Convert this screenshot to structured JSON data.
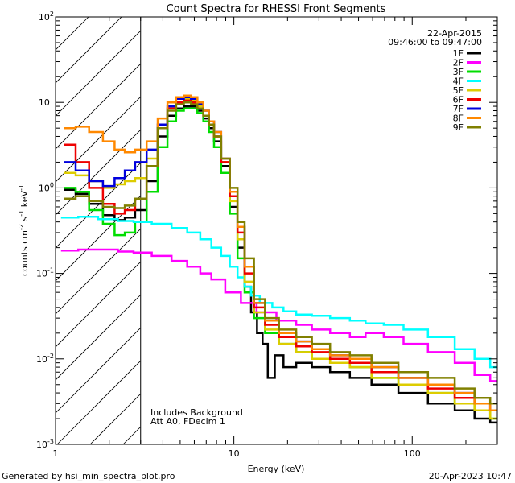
{
  "chart_data": {
    "type": "line",
    "title": "Count Spectra for RHESSI Front Segments",
    "xlabel": "Energy (keV)",
    "ylabel": {
      "main": "counts cm",
      "exp1": "-2",
      "mid": " s",
      "exp2": "-1",
      "tail": " keV",
      "exp3": "-1"
    },
    "x_scale": "log",
    "y_scale": "log",
    "xlim": [
      1,
      300
    ],
    "ylim": [
      0.001,
      100
    ],
    "x_ticks": [
      {
        "value": 1,
        "label": "1"
      },
      {
        "value": 10,
        "label": "10"
      },
      {
        "value": 100,
        "label": "100"
      }
    ],
    "y_ticks": [
      {
        "value": 0.001,
        "base": "10",
        "exp": "-3"
      },
      {
        "value": 0.01,
        "base": "10",
        "exp": "-2"
      },
      {
        "value": 0.1,
        "base": "10",
        "exp": "-1"
      },
      {
        "value": 1,
        "base": "10",
        "exp": "0"
      },
      {
        "value": 10,
        "base": "10",
        "exp": "1"
      },
      {
        "value": 100,
        "base": "10",
        "exp": "2"
      }
    ],
    "shaded_region": {
      "x_from": 1,
      "x_to": 3
    },
    "date": "22-Apr-2015",
    "time_range": "09:46:00 to 09:47:00",
    "annotations": [
      "Includes Background",
      "Att A0, FDecim 1"
    ],
    "series": [
      {
        "name": "1F",
        "color": "#000000",
        "points": [
          [
            1.2,
            0.95
          ],
          [
            1.4,
            0.85
          ],
          [
            1.7,
            0.65
          ],
          [
            2.0,
            0.48
          ],
          [
            2.3,
            0.42
          ],
          [
            2.6,
            0.45
          ],
          [
            3.0,
            0.55
          ],
          [
            3.5,
            1.2
          ],
          [
            4.0,
            4.0
          ],
          [
            4.5,
            7.0
          ],
          [
            5.0,
            8.5
          ],
          [
            5.5,
            9.0
          ],
          [
            6.0,
            9.0
          ],
          [
            6.5,
            8.0
          ],
          [
            7.0,
            6.5
          ],
          [
            7.5,
            5.0
          ],
          [
            8.0,
            3.5
          ],
          [
            9.0,
            1.8
          ],
          [
            10.0,
            0.6
          ],
          [
            11.0,
            0.2
          ],
          [
            12.0,
            0.07
          ],
          [
            13.0,
            0.035
          ],
          [
            14.0,
            0.02
          ],
          [
            15.0,
            0.015
          ],
          [
            16.0,
            0.006
          ],
          [
            18.0,
            0.011
          ],
          [
            20.0,
            0.008
          ],
          [
            25.0,
            0.009
          ],
          [
            30.0,
            0.008
          ],
          [
            40.0,
            0.007
          ],
          [
            50.0,
            0.006
          ],
          [
            70.0,
            0.005
          ],
          [
            100.0,
            0.004
          ],
          [
            150.0,
            0.003
          ],
          [
            200.0,
            0.0025
          ],
          [
            250.0,
            0.002
          ],
          [
            300.0,
            0.0018
          ]
        ]
      },
      {
        "name": "2F",
        "color": "#ff00ff",
        "points": [
          [
            1.2,
            0.185
          ],
          [
            1.5,
            0.19
          ],
          [
            2.0,
            0.19
          ],
          [
            2.5,
            0.18
          ],
          [
            3.0,
            0.175
          ],
          [
            4.0,
            0.16
          ],
          [
            5.0,
            0.14
          ],
          [
            6.0,
            0.12
          ],
          [
            7.0,
            0.1
          ],
          [
            8.0,
            0.085
          ],
          [
            10.0,
            0.06
          ],
          [
            12.0,
            0.045
          ],
          [
            15.0,
            0.035
          ],
          [
            20.0,
            0.028
          ],
          [
            25.0,
            0.025
          ],
          [
            30.0,
            0.022
          ],
          [
            40.0,
            0.02
          ],
          [
            50.0,
            0.018
          ],
          [
            60.0,
            0.02
          ],
          [
            80.0,
            0.018
          ],
          [
            100.0,
            0.015
          ],
          [
            150.0,
            0.012
          ],
          [
            200.0,
            0.009
          ],
          [
            250.0,
            0.0065
          ],
          [
            300.0,
            0.0055
          ]
        ]
      },
      {
        "name": "3F",
        "color": "#00dd00",
        "points": [
          [
            1.2,
            1.0
          ],
          [
            1.4,
            0.9
          ],
          [
            1.7,
            0.55
          ],
          [
            2.0,
            0.38
          ],
          [
            2.3,
            0.28
          ],
          [
            2.6,
            0.3
          ],
          [
            3.0,
            0.4
          ],
          [
            3.5,
            0.9
          ],
          [
            4.0,
            3.0
          ],
          [
            4.5,
            6.0
          ],
          [
            5.0,
            8.0
          ],
          [
            5.5,
            8.5
          ],
          [
            6.0,
            8.5
          ],
          [
            6.5,
            7.5
          ],
          [
            7.0,
            6.0
          ],
          [
            7.5,
            4.5
          ],
          [
            8.0,
            3.0
          ],
          [
            9.0,
            1.5
          ],
          [
            10.0,
            0.5
          ],
          [
            11.0,
            0.15
          ],
          [
            12.0,
            0.06
          ],
          [
            14.0,
            0.03
          ],
          [
            16.0,
            0.02
          ],
          [
            20.0,
            0.015
          ],
          [
            25.0,
            0.012
          ],
          [
            30.0,
            0.01
          ],
          [
            40.0,
            0.009
          ],
          [
            50.0,
            0.008
          ],
          [
            70.0,
            0.006
          ],
          [
            100.0,
            0.005
          ],
          [
            150.0,
            0.004
          ],
          [
            200.0,
            0.003
          ],
          [
            250.0,
            0.0025
          ],
          [
            300.0,
            0.002
          ]
        ]
      },
      {
        "name": "4F",
        "color": "#00ffff",
        "points": [
          [
            1.2,
            0.45
          ],
          [
            1.5,
            0.46
          ],
          [
            2.0,
            0.43
          ],
          [
            2.5,
            0.41
          ],
          [
            3.0,
            0.4
          ],
          [
            4.0,
            0.38
          ],
          [
            5.0,
            0.34
          ],
          [
            6.0,
            0.3
          ],
          [
            7.0,
            0.25
          ],
          [
            8.0,
            0.2
          ],
          [
            9.0,
            0.16
          ],
          [
            10.0,
            0.12
          ],
          [
            11.0,
            0.09
          ],
          [
            12.0,
            0.07
          ],
          [
            13.0,
            0.055
          ],
          [
            15.0,
            0.045
          ],
          [
            18.0,
            0.04
          ],
          [
            20.0,
            0.036
          ],
          [
            25.0,
            0.033
          ],
          [
            30.0,
            0.032
          ],
          [
            40.0,
            0.03
          ],
          [
            50.0,
            0.028
          ],
          [
            60.0,
            0.026
          ],
          [
            80.0,
            0.025
          ],
          [
            100.0,
            0.022
          ],
          [
            150.0,
            0.018
          ],
          [
            200.0,
            0.013
          ],
          [
            250.0,
            0.01
          ],
          [
            300.0,
            0.008
          ]
        ]
      },
      {
        "name": "5F",
        "color": "#ddcc00",
        "points": [
          [
            1.2,
            1.5
          ],
          [
            1.4,
            1.4
          ],
          [
            1.7,
            1.2
          ],
          [
            2.0,
            1.0
          ],
          [
            2.3,
            1.1
          ],
          [
            2.6,
            1.2
          ],
          [
            3.0,
            1.3
          ],
          [
            3.5,
            2.2
          ],
          [
            4.0,
            5.0
          ],
          [
            4.5,
            8.5
          ],
          [
            5.0,
            10.0
          ],
          [
            5.5,
            11.0
          ],
          [
            6.0,
            10.5
          ],
          [
            6.5,
            9.0
          ],
          [
            7.0,
            7.0
          ],
          [
            7.5,
            5.5
          ],
          [
            8.0,
            4.0
          ],
          [
            9.0,
            2.0
          ],
          [
            10.0,
            0.7
          ],
          [
            11.0,
            0.25
          ],
          [
            12.0,
            0.08
          ],
          [
            14.0,
            0.035
          ],
          [
            16.0,
            0.022
          ],
          [
            20.0,
            0.015
          ],
          [
            25.0,
            0.012
          ],
          [
            30.0,
            0.01
          ],
          [
            40.0,
            0.009
          ],
          [
            50.0,
            0.008
          ],
          [
            70.0,
            0.006
          ],
          [
            100.0,
            0.005
          ],
          [
            150.0,
            0.004
          ],
          [
            200.0,
            0.003
          ],
          [
            250.0,
            0.0025
          ],
          [
            300.0,
            0.002
          ]
        ]
      },
      {
        "name": "6F",
        "color": "#ee0000",
        "points": [
          [
            1.2,
            3.2
          ],
          [
            1.4,
            2.0
          ],
          [
            1.7,
            1.0
          ],
          [
            2.0,
            0.65
          ],
          [
            2.3,
            0.5
          ],
          [
            2.6,
            0.55
          ],
          [
            3.0,
            0.75
          ],
          [
            3.5,
            1.8
          ],
          [
            4.0,
            5.0
          ],
          [
            4.5,
            8.5
          ],
          [
            5.0,
            10.0
          ],
          [
            5.5,
            10.5
          ],
          [
            6.0,
            10.0
          ],
          [
            6.5,
            8.5
          ],
          [
            7.0,
            7.0
          ],
          [
            7.5,
            5.5
          ],
          [
            8.0,
            4.0
          ],
          [
            9.0,
            2.0
          ],
          [
            10.0,
            0.8
          ],
          [
            11.0,
            0.3
          ],
          [
            12.0,
            0.1
          ],
          [
            14.0,
            0.04
          ],
          [
            16.0,
            0.025
          ],
          [
            20.0,
            0.018
          ],
          [
            25.0,
            0.014
          ],
          [
            30.0,
            0.012
          ],
          [
            40.0,
            0.01
          ],
          [
            50.0,
            0.009
          ],
          [
            70.0,
            0.007
          ],
          [
            100.0,
            0.006
          ],
          [
            150.0,
            0.0045
          ],
          [
            200.0,
            0.0035
          ],
          [
            250.0,
            0.003
          ],
          [
            300.0,
            0.0025
          ]
        ]
      },
      {
        "name": "7F",
        "color": "#0000dd",
        "points": [
          [
            1.2,
            2.0
          ],
          [
            1.4,
            1.6
          ],
          [
            1.7,
            1.2
          ],
          [
            2.0,
            1.05
          ],
          [
            2.3,
            1.3
          ],
          [
            2.6,
            1.6
          ],
          [
            3.0,
            2.0
          ],
          [
            3.5,
            2.8
          ],
          [
            4.0,
            5.5
          ],
          [
            4.5,
            9.0
          ],
          [
            5.0,
            11.0
          ],
          [
            5.5,
            11.5
          ],
          [
            6.0,
            11.0
          ],
          [
            6.5,
            9.5
          ],
          [
            7.0,
            8.0
          ],
          [
            7.5,
            6.0
          ],
          [
            8.0,
            4.5
          ],
          [
            9.0,
            2.2
          ],
          [
            10.0,
            0.9
          ],
          [
            11.0,
            0.35
          ],
          [
            12.0,
            0.12
          ],
          [
            14.0,
            0.045
          ],
          [
            16.0,
            0.028
          ],
          [
            20.0,
            0.02
          ],
          [
            25.0,
            0.016
          ],
          [
            30.0,
            0.013
          ],
          [
            40.0,
            0.011
          ],
          [
            50.0,
            0.01
          ],
          [
            70.0,
            0.008
          ],
          [
            100.0,
            0.006
          ],
          [
            150.0,
            0.005
          ],
          [
            200.0,
            0.004
          ],
          [
            250.0,
            0.003
          ],
          [
            300.0,
            0.0025
          ]
        ]
      },
      {
        "name": "8F",
        "color": "#ff8800",
        "points": [
          [
            1.2,
            5.0
          ],
          [
            1.4,
            5.2
          ],
          [
            1.7,
            4.5
          ],
          [
            2.0,
            3.5
          ],
          [
            2.3,
            2.8
          ],
          [
            2.6,
            2.6
          ],
          [
            3.0,
            2.8
          ],
          [
            3.5,
            3.5
          ],
          [
            4.0,
            6.5
          ],
          [
            4.5,
            10.0
          ],
          [
            5.0,
            11.5
          ],
          [
            5.5,
            12.0
          ],
          [
            6.0,
            11.5
          ],
          [
            6.5,
            10.0
          ],
          [
            7.0,
            8.0
          ],
          [
            7.5,
            6.0
          ],
          [
            8.0,
            4.5
          ],
          [
            9.0,
            2.2
          ],
          [
            10.0,
            0.9
          ],
          [
            11.0,
            0.35
          ],
          [
            12.0,
            0.12
          ],
          [
            14.0,
            0.045
          ],
          [
            16.0,
            0.028
          ],
          [
            20.0,
            0.02
          ],
          [
            25.0,
            0.016
          ],
          [
            30.0,
            0.013
          ],
          [
            40.0,
            0.011
          ],
          [
            50.0,
            0.01
          ],
          [
            70.0,
            0.008
          ],
          [
            100.0,
            0.006
          ],
          [
            150.0,
            0.005
          ],
          [
            200.0,
            0.004
          ],
          [
            250.0,
            0.003
          ],
          [
            300.0,
            0.0025
          ]
        ]
      },
      {
        "name": "9F",
        "color": "#808000",
        "points": [
          [
            1.2,
            0.75
          ],
          [
            1.4,
            0.8
          ],
          [
            1.7,
            0.7
          ],
          [
            2.0,
            0.6
          ],
          [
            2.3,
            0.58
          ],
          [
            2.6,
            0.62
          ],
          [
            3.0,
            0.75
          ],
          [
            3.5,
            1.8
          ],
          [
            4.0,
            5.0
          ],
          [
            4.5,
            8.0
          ],
          [
            5.0,
            9.5
          ],
          [
            5.5,
            10.0
          ],
          [
            6.0,
            9.5
          ],
          [
            6.5,
            8.5
          ],
          [
            7.0,
            7.0
          ],
          [
            7.5,
            5.5
          ],
          [
            8.0,
            4.0
          ],
          [
            9.0,
            2.2
          ],
          [
            10.0,
            1.0
          ],
          [
            11.0,
            0.4
          ],
          [
            12.0,
            0.15
          ],
          [
            14.0,
            0.05
          ],
          [
            16.0,
            0.03
          ],
          [
            20.0,
            0.022
          ],
          [
            25.0,
            0.018
          ],
          [
            30.0,
            0.015
          ],
          [
            40.0,
            0.012
          ],
          [
            50.0,
            0.011
          ],
          [
            70.0,
            0.009
          ],
          [
            100.0,
            0.007
          ],
          [
            150.0,
            0.006
          ],
          [
            200.0,
            0.0045
          ],
          [
            250.0,
            0.0035
          ],
          [
            300.0,
            0.003
          ]
        ]
      }
    ]
  },
  "footer": {
    "left": "Generated by hsi_min_spectra_plot.pro",
    "right": "20-Apr-2023 10:47"
  }
}
